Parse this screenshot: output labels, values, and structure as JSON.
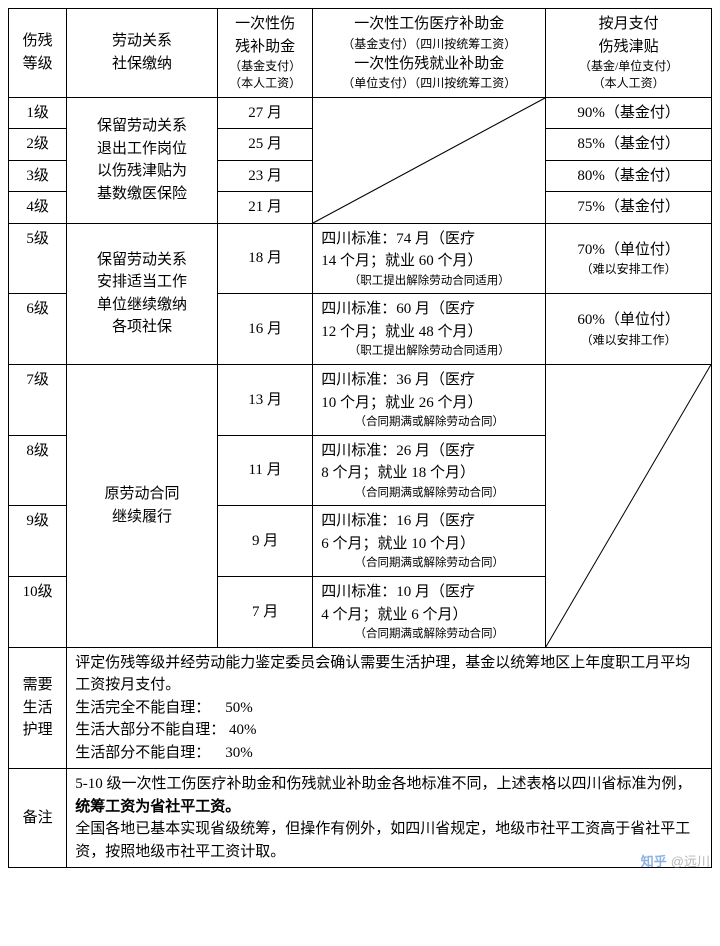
{
  "cols": {
    "c1": 58,
    "c2": 150,
    "c3": 95,
    "c4": 232,
    "c5": 165
  },
  "header": {
    "h1": "伤残\n等级",
    "h2": "劳动关系\n社保缴纳",
    "h3_main": "一次性伤\n残补助金",
    "h3_sub": "（基金支付）\n（本人工资）",
    "h4_l1": "一次性工伤医疗补助金",
    "h4_s1": "（基金支付）（四川按统筹工资）",
    "h4_l2": "一次性伤残就业补助金",
    "h4_s2": "（单位支付）（四川按统筹工资）",
    "h5_main": "按月支付\n伤残津贴",
    "h5_sub": "（基金/单位支付）\n（本人工资）"
  },
  "g1": {
    "rel": "保留劳动关系\n退出工作岗位\n以伤残津贴为\n基数缴医保险",
    "rows": [
      {
        "lv": "1级",
        "m": "27 月",
        "pay": "90%（基金付）"
      },
      {
        "lv": "2级",
        "m": "25 月",
        "pay": "85%（基金付）"
      },
      {
        "lv": "3级",
        "m": "23 月",
        "pay": "80%（基金付）"
      },
      {
        "lv": "4级",
        "m": "21 月",
        "pay": "75%（基金付）"
      }
    ]
  },
  "g2": {
    "rel": "保留劳动关系\n安排适当工作\n单位继续缴纳\n各项社保",
    "rows": [
      {
        "lv": "5级",
        "m": "18 月",
        "d_main": "四川标准：74 月（医疗\n14 个月；就业 60 个月）",
        "d_sub": "（职工提出解除劳动合同适用）",
        "pay_main": "70%（单位付）",
        "pay_sub": "（难以安排工作）"
      },
      {
        "lv": "6级",
        "m": "16 月",
        "d_main": "四川标准：60 月（医疗\n12 个月；就业 48 个月）",
        "d_sub": "（职工提出解除劳动合同适用）",
        "pay_main": "60%（单位付）",
        "pay_sub": "（难以安排工作）"
      }
    ]
  },
  "g3": {
    "rel": "原劳动合同\n继续履行",
    "rows": [
      {
        "lv": "7级",
        "m": "13 月",
        "d_main": "四川标准：36 月（医疗\n10 个月；就业 26 个月）",
        "d_sub": "（合同期满或解除劳动合同）"
      },
      {
        "lv": "8级",
        "m": "11 月",
        "d_main": "四川标准：26 月（医疗\n8 个月；就业 18 个月）",
        "d_sub": "（合同期满或解除劳动合同）"
      },
      {
        "lv": "9级",
        "m": "9 月",
        "d_main": "四川标准：16 月（医疗\n6 个月；就业 10 个月）",
        "d_sub": "（合同期满或解除劳动合同）"
      },
      {
        "lv": "10级",
        "m": "7 月",
        "d_main": "四川标准：10 月（医疗\n4 个月；就业 6 个月）",
        "d_sub": "（合同期满或解除劳动合同）"
      }
    ]
  },
  "care": {
    "label": "需要\n生活\n护理",
    "body_l1": "评定伤残等级并经劳动能力鉴定委员会确认需要生活护理，基金以统筹地区上年度职工月平均工资按月支付。",
    "a": "生活完全不能自理：",
    "av": "50%",
    "b": "生活大部分不能自理：",
    "bv": "40%",
    "c": "生活部分不能自理：",
    "cv": "30%"
  },
  "note": {
    "label": "备注",
    "p1a": "5-10 级一次性工伤医疗补助金和伤残就业补助金各地标准不同，上述表格以四川省标准为例，",
    "p1b": "统筹工资为省社平工资。",
    "p2": "全国各地已基本实现省级统筹，但操作有例外，如四川省规定，地级市社平工资高于省社平工资，按照地级市社平工资计取。"
  },
  "watermark": "@远川"
}
